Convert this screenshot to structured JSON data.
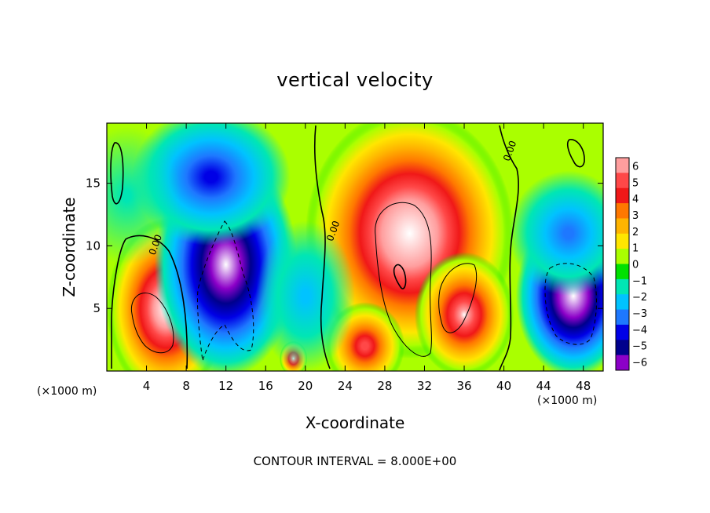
{
  "chart_data": {
    "type": "heatmap",
    "title": "vertical velocity",
    "xlabel": "X-coordinate",
    "ylabel": "Z-coordinate",
    "x_unit_label": "(×1000 m)",
    "x_ticks": [
      4,
      8,
      12,
      16,
      20,
      24,
      28,
      32,
      36,
      40,
      44,
      48
    ],
    "y_ticks": [
      5,
      10,
      15
    ],
    "xlim": [
      0,
      50
    ],
    "ylim": [
      0,
      19.8
    ],
    "footer": "CONTOUR INTERVAL = 8.000E+00",
    "colorbar": {
      "ticks": [
        "6",
        "5",
        "4",
        "3",
        "2",
        "1",
        "0",
        "−1",
        "−2",
        "−3",
        "−4",
        "−5",
        "−6"
      ],
      "colors": [
        "#ff9e9e",
        "#ff4848",
        "#f01818",
        "#ff7800",
        "#ffb400",
        "#ffe600",
        "#aaff00",
        "#00e100",
        "#00e6b4",
        "#00c3ff",
        "#1e78ff",
        "#0000e6",
        "#00008c",
        "#8c00c8"
      ]
    },
    "contour_labels": [
      {
        "text": "0.00",
        "x": 5.2,
        "y": 10.0
      },
      {
        "text": "0.00",
        "x": 23.1,
        "y": 11.1
      },
      {
        "text": "0.00",
        "x": 40.9,
        "y": 17.5
      }
    ],
    "field_features": [
      {
        "sign": "positive",
        "x": 6.0,
        "y": 5.0,
        "rx": 6.0,
        "ry": 7.2,
        "peak": 7
      },
      {
        "sign": "negative",
        "x": 12.0,
        "y": 8.5,
        "rx": 7.2,
        "ry": 9.0,
        "peak": -7
      },
      {
        "sign": "negative",
        "x": 10.5,
        "y": 15.5,
        "rx": 8.0,
        "ry": 5.5,
        "peak": -3.5
      },
      {
        "sign": "negative",
        "x": 2.0,
        "y": 14.0,
        "rx": 5.5,
        "ry": 5.5,
        "peak": -1.2
      },
      {
        "sign": "positive",
        "x": 30.5,
        "y": 11.0,
        "rx": 10.5,
        "ry": 10.0,
        "peak": 7.5
      },
      {
        "sign": "positive",
        "x": 36.0,
        "y": 4.5,
        "rx": 5.0,
        "ry": 5.0,
        "peak": 5.5
      },
      {
        "sign": "positive",
        "x": 26.0,
        "y": 2.0,
        "rx": 4.0,
        "ry": 3.5,
        "peak": 5
      },
      {
        "sign": "positive",
        "x": 18.8,
        "y": 1.0,
        "rx": 1.4,
        "ry": 1.4,
        "peak": 6
      },
      {
        "sign": "negative",
        "x": 47.0,
        "y": 6.0,
        "rx": 5.8,
        "ry": 6.5,
        "peak": -7.5
      },
      {
        "sign": "negative",
        "x": 46.5,
        "y": 11.0,
        "rx": 6.0,
        "ry": 5.0,
        "peak": -3
      },
      {
        "sign": "negative",
        "x": 20.0,
        "y": 6.0,
        "rx": 5.0,
        "ry": 6.0,
        "peak": -2
      }
    ]
  }
}
